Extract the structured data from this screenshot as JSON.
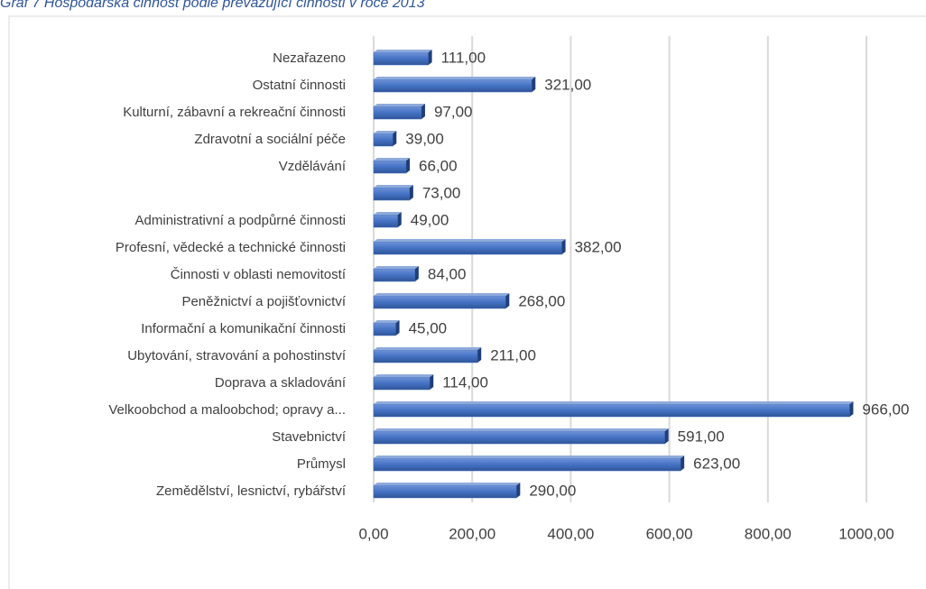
{
  "chart_data": {
    "type": "bar",
    "orientation": "horizontal",
    "title": "Graf 7 Hospodářská činnost podle převažující činnosti v roce 2013",
    "categories": [
      "Nezařazeno",
      "Ostatní činnosti",
      "Kulturní, zábavní a rekreační činnosti",
      "Zdravotní a sociální péče",
      "Vzdělávání",
      null,
      "Administrativní a podpůrné činnosti",
      "Profesní, vědecké a technické činnosti",
      "Činnosti v oblasti nemovitostí",
      "Peněžnictví a pojišťovnictví",
      "Informační a komunikační činnosti",
      "Ubytování, stravování a pohostinství",
      "Doprava a skladování",
      "Velkoobchod a maloobchod; opravy a...",
      "Stavebnictví",
      "Průmysl",
      "Zemědělství, lesnictví, rybářství"
    ],
    "values": [
      111,
      321,
      97,
      39,
      66,
      73,
      49,
      382,
      84,
      268,
      45,
      211,
      114,
      966,
      591,
      623,
      290
    ],
    "value_labels": [
      "111,00",
      "321,00",
      "97,00",
      "39,00",
      "66,00",
      "73,00",
      "49,00",
      "382,00",
      "84,00",
      "268,00",
      "45,00",
      "211,00",
      "114,00",
      "966,00",
      "591,00",
      "623,00",
      "290,00"
    ],
    "color": "#4472c4",
    "xlim": [
      0,
      1000
    ],
    "xticks": [
      {
        "value": 0,
        "label": "0,00"
      },
      {
        "value": 200,
        "label": "200,00"
      },
      {
        "value": 400,
        "label": "400,00"
      },
      {
        "value": 600,
        "label": "600,00"
      },
      {
        "value": 800,
        "label": "800,00"
      },
      {
        "value": 1000,
        "label": "1000,00"
      }
    ],
    "grid": true
  }
}
